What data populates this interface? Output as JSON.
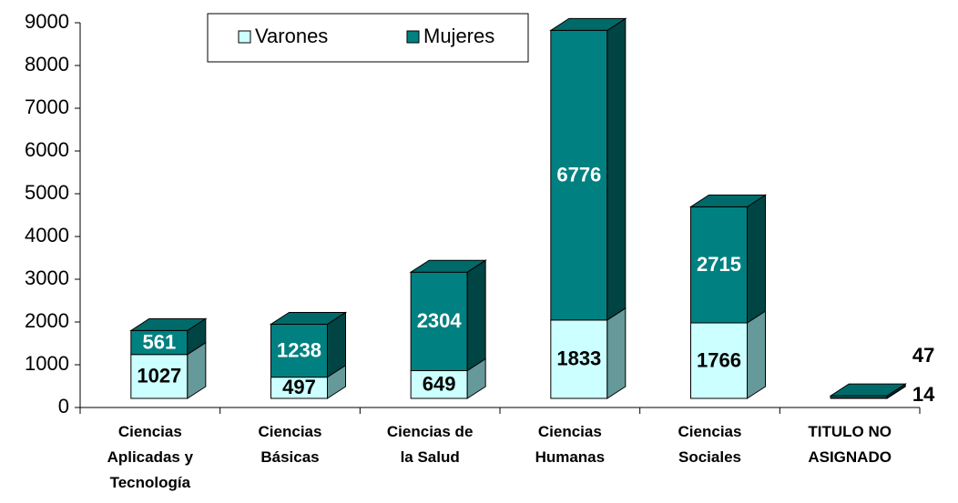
{
  "chart_data": {
    "type": "bar3d_stacked",
    "categories": [
      "Ciencias\nAplicadas y\nTecnología",
      "Ciencias\nBásicas",
      "Ciencias de\nla Salud",
      "Ciencias\nHumanas",
      "Ciencias\nSociales",
      "TITULO NO\nASIGNADO"
    ],
    "series": [
      {
        "name": "Varones",
        "color": "#ccffff",
        "values": [
          1027,
          497,
          649,
          1833,
          1766,
          14
        ]
      },
      {
        "name": "Mujeres",
        "color": "#008080",
        "values": [
          561,
          1238,
          2304,
          6776,
          2715,
          47
        ]
      }
    ],
    "ylim": [
      0,
      9000
    ],
    "yticks": [
      0,
      1000,
      2000,
      3000,
      4000,
      5000,
      6000,
      7000,
      8000,
      9000
    ],
    "legend": "top"
  }
}
